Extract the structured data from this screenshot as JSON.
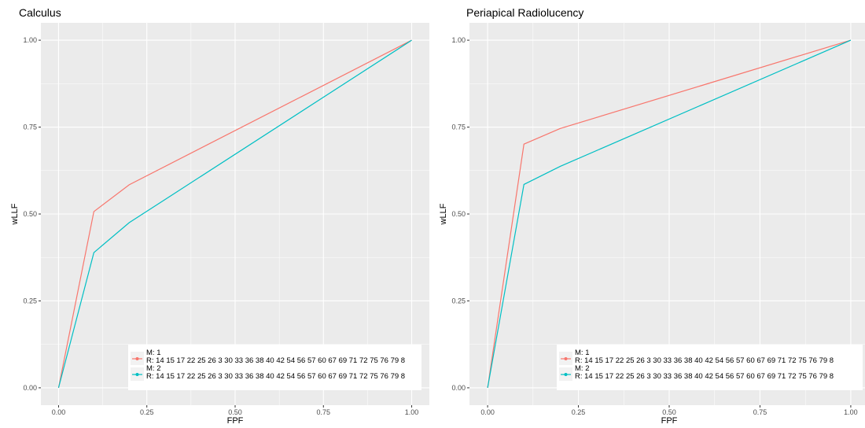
{
  "colors": {
    "panel_bg": "#ebebeb",
    "grid": "#ffffff",
    "series_1": "#f8766d",
    "series_2": "#00bfc4"
  },
  "chart_data": [
    {
      "type": "line",
      "title": "Calculus",
      "xlabel": "FPF",
      "ylabel": "wLLF",
      "xlim": [
        0,
        1
      ],
      "ylim": [
        0,
        1
      ],
      "x_ticks": [
        "0.00",
        "0.25",
        "0.50",
        "0.75",
        "1.00"
      ],
      "y_ticks": [
        "0.00",
        "0.25",
        "0.50",
        "0.75",
        "1.00"
      ],
      "grid": true,
      "legend_position": "bottom-right",
      "series": [
        {
          "name": "M: 1\nR: 14 15 17 22 25 26 3 30 33 36 38 40 42 54 56 57 60 67 69 71 72 75 76 79 8",
          "x": [
            0,
            0.1,
            0.2,
            1.0
          ],
          "y": [
            0,
            0.507,
            0.584,
            1.0
          ]
        },
        {
          "name": "M: 2\nR: 14 15 17 22 25 26 3 30 33 36 38 40 42 54 56 57 60 67 69 71 72 75 76 79 8",
          "x": [
            0,
            0.1,
            0.2,
            1.0
          ],
          "y": [
            0,
            0.389,
            0.475,
            1.0
          ]
        }
      ]
    },
    {
      "type": "line",
      "title": "Periapical Radiolucency",
      "xlabel": "FPF",
      "ylabel": "wLLF",
      "xlim": [
        0,
        1
      ],
      "ylim": [
        0,
        1
      ],
      "x_ticks": [
        "0.00",
        "0.25",
        "0.50",
        "0.75",
        "1.00"
      ],
      "y_ticks": [
        "0.00",
        "0.25",
        "0.50",
        "0.75",
        "1.00"
      ],
      "grid": true,
      "legend_position": "bottom-right",
      "series": [
        {
          "name": "M: 1\nR: 14 15 17 22 25 26 3 30 33 36 38 40 42 54 56 57 60 67 69 71 72 75 76 79 8",
          "x": [
            0,
            0.1,
            0.2,
            1.0
          ],
          "y": [
            0,
            0.701,
            0.746,
            1.0
          ]
        },
        {
          "name": "M: 2\nR: 14 15 17 22 25 26 3 30 33 36 38 40 42 54 56 57 60 67 69 71 72 75 76 79 8",
          "x": [
            0,
            0.1,
            0.2,
            1.0
          ],
          "y": [
            0,
            0.585,
            0.637,
            1.0
          ]
        }
      ]
    }
  ]
}
